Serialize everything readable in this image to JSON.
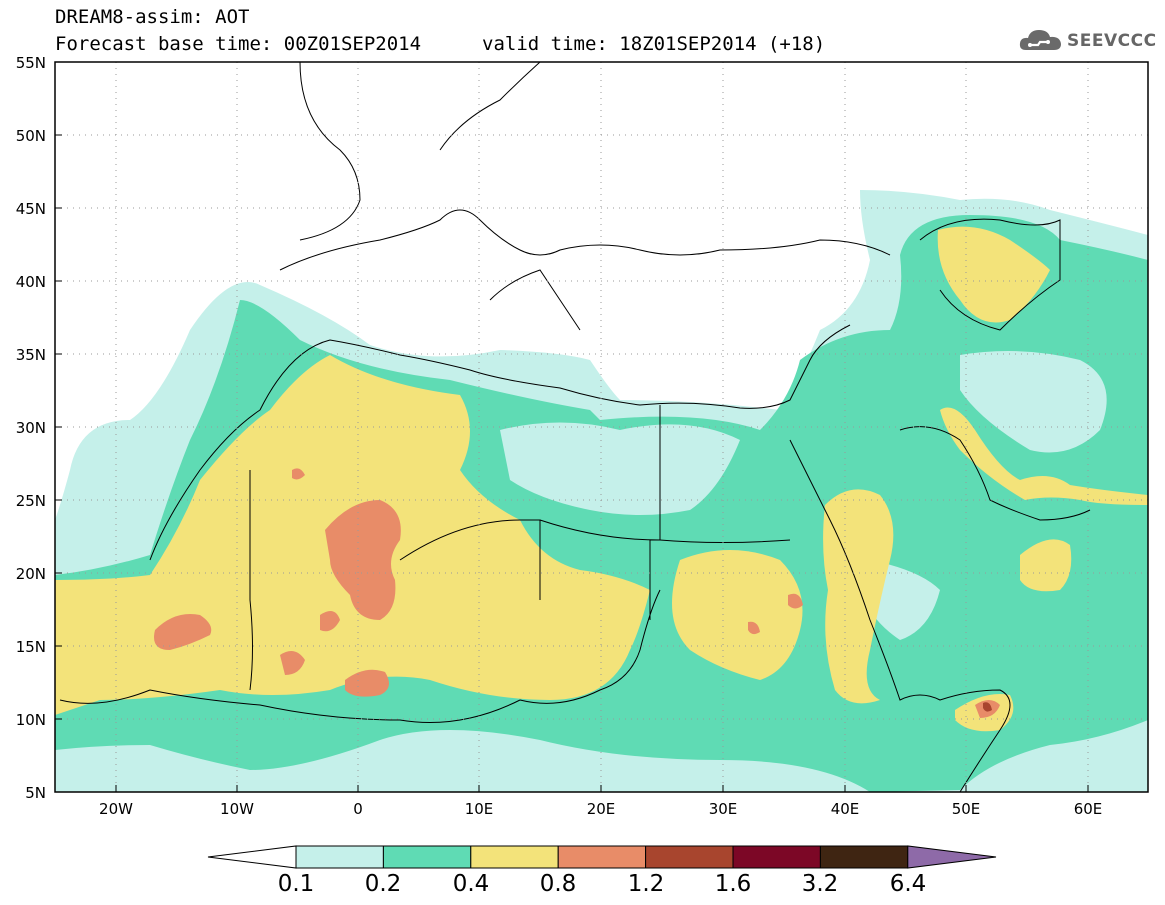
{
  "header": {
    "title": "DREAM8-assim: AOT",
    "base_time": "Forecast base time: 00Z01SEP2014",
    "valid_time": "valid time: 18Z01SEP2014 (+18)",
    "logo_text": "SEEVCCC"
  },
  "map": {
    "projection": "lat-lon",
    "lon_range": [
      "25W",
      "65E"
    ],
    "lat_range": [
      "5N",
      "55N"
    ],
    "lat_labels": [
      "55N",
      "50N",
      "45N",
      "40N",
      "35N",
      "30N",
      "25N",
      "20N",
      "15N",
      "10N",
      "5N"
    ],
    "lon_labels": [
      "20W",
      "10W",
      "0",
      "10E",
      "20E",
      "30E",
      "40E",
      "50E",
      "60E"
    ],
    "grid": true
  },
  "colorbar": {
    "levels": [
      "0.1",
      "0.2",
      "0.4",
      "0.8",
      "1.2",
      "1.6",
      "3.2",
      "6.4"
    ],
    "colors": [
      "#c5f0ea",
      "#5fdbb4",
      "#f3e37a",
      "#e88c68",
      "#a8452e",
      "#7c0726",
      "#3f2512",
      "#8e6aa8"
    ]
  }
}
